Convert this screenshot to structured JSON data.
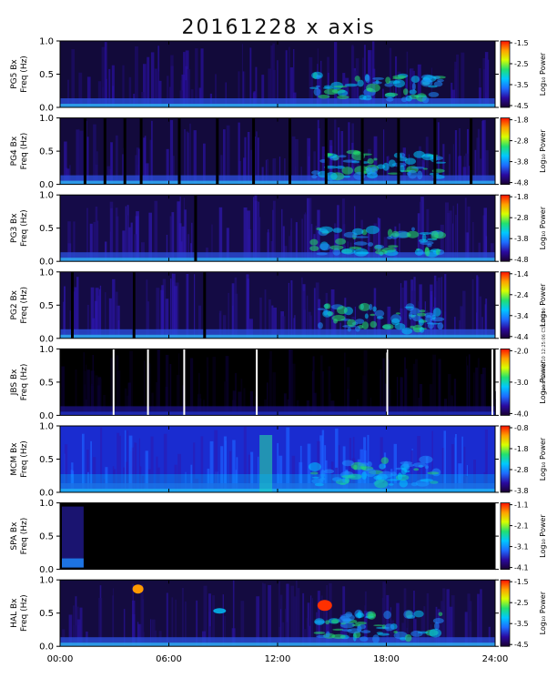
{
  "title": "20161228 x axis",
  "stamp": "wed Tue sep 10 12:25:06 CST 2019",
  "chart_data": {
    "type": "heatmap",
    "title": "20161228 x axis",
    "xlabel": "",
    "x_ticks": [
      "00:00",
      "06:00",
      "12:00",
      "18:00",
      "24:00"
    ],
    "xlim_hours": [
      0,
      24
    ],
    "y_ticks": [
      "0.0",
      "0.5",
      "1.0"
    ],
    "ylim": [
      0,
      1.0
    ],
    "colorbar_label": "Log₁₀ Power",
    "colormap": [
      "#1a0030",
      "#2a0aa0",
      "#1e6cff",
      "#00c8ff",
      "#22e070",
      "#d8ff00",
      "#ffa000",
      "#ff1000"
    ],
    "panels": [
      {
        "station": "PG5",
        "ylabel_top": "PG5 Bx",
        "ylabel_bottom": "Freq (Hz)",
        "cbar_ticks": [
          "-1.5",
          "-2.5",
          "-3.5",
          "-4.5"
        ]
      },
      {
        "station": "PG4",
        "ylabel_top": "PG4 Bx",
        "ylabel_bottom": "Freq (Hz)",
        "cbar_ticks": [
          "-1.8",
          "-2.8",
          "-3.8",
          "-4.8"
        ]
      },
      {
        "station": "PG3",
        "ylabel_top": "PG3 Bx",
        "ylabel_bottom": "Freq (Hz)",
        "cbar_ticks": [
          "-1.8",
          "-2.8",
          "-3.8",
          "-4.8"
        ]
      },
      {
        "station": "PG2",
        "ylabel_top": "PG2 Bx",
        "ylabel_bottom": "Freq (Hz)",
        "cbar_ticks": [
          "-1.4",
          "-2.4",
          "-3.4",
          "-4.4"
        ]
      },
      {
        "station": "JBS",
        "ylabel_top": "JBS Bx",
        "ylabel_bottom": "Freq (Hz)",
        "cbar_ticks": [
          "-2.0",
          "-3.0",
          "-4.0"
        ]
      },
      {
        "station": "MCM",
        "ylabel_top": "MCM Bx",
        "ylabel_bottom": "Freq (Hz)",
        "cbar_ticks": [
          "-0.8",
          "-1.8",
          "-2.8",
          "-3.8"
        ]
      },
      {
        "station": "SPA",
        "ylabel_top": "SPA Bx",
        "ylabel_bottom": "Freq (Hz)",
        "cbar_ticks": [
          "-1.1",
          "-2.1",
          "-3.1",
          "-4.1"
        ]
      },
      {
        "station": "HAL",
        "ylabel_top": "HAL Bx",
        "ylabel_bottom": "Freq (Hz)",
        "cbar_ticks": [
          "-1.5",
          "-2.5",
          "-3.5",
          "-4.5"
        ]
      }
    ]
  }
}
